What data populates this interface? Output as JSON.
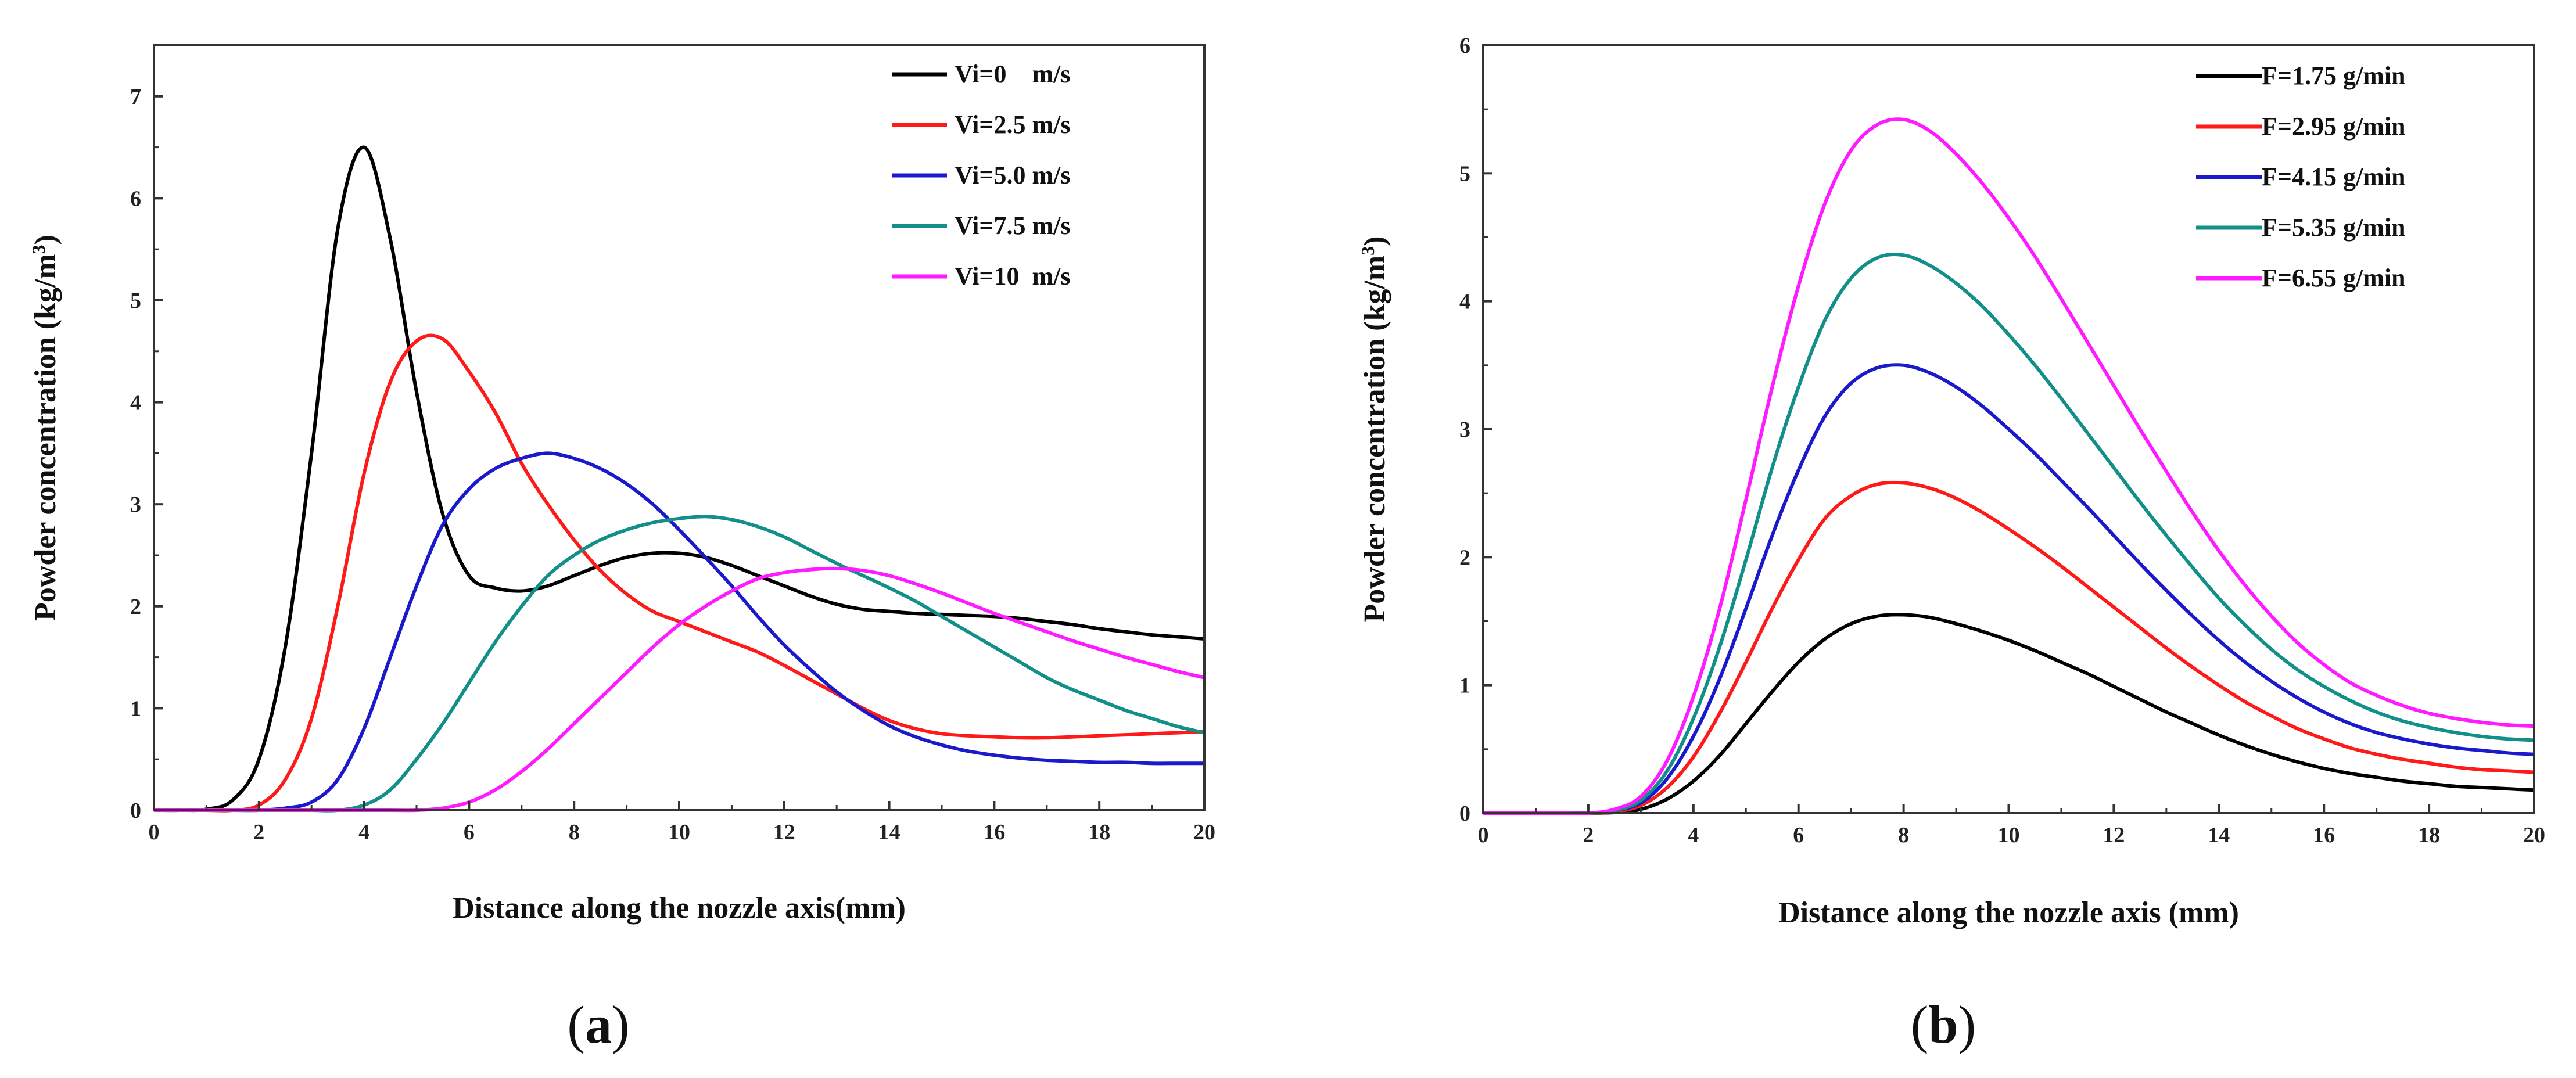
{
  "chart_data": [
    {
      "type": "line",
      "panel_label": "(a)",
      "panel_letter": "a",
      "xlabel": "Distance along the nozzle axis(mm)",
      "ylabel": "Powder concentration (kg/m",
      "ylabel_sup": "3",
      "ylabel_close": ")",
      "xlim": [
        0,
        20
      ],
      "ylim": [
        0,
        7.5
      ],
      "xticks": [
        0,
        2,
        4,
        6,
        8,
        10,
        12,
        14,
        16,
        18,
        20
      ],
      "yticks": [
        0,
        1,
        2,
        3,
        4,
        5,
        6,
        7
      ],
      "xtick_labels": [
        "0",
        "2",
        "4",
        "6",
        "8",
        "10",
        "12",
        "14",
        "16",
        "18",
        "20"
      ],
      "ytick_labels": [
        "0",
        "1",
        "2",
        "3",
        "4",
        "5",
        "6",
        "7"
      ],
      "legend_position": "top-right",
      "x": [
        0,
        0.5,
        1,
        1.5,
        2,
        2.5,
        3,
        3.5,
        4,
        4.5,
        5,
        5.5,
        6,
        6.5,
        7,
        7.5,
        8,
        8.5,
        9,
        9.5,
        10,
        10.5,
        11,
        11.5,
        12,
        12.5,
        13,
        13.5,
        14,
        14.5,
        15,
        15.5,
        16,
        16.5,
        17,
        17.5,
        18,
        18.5,
        19,
        19.5,
        20
      ],
      "series": [
        {
          "name": "Vi=0    m/s",
          "color": "#000000",
          "values": [
            0,
            0,
            0.01,
            0.1,
            0.5,
            1.6,
            3.5,
            5.7,
            6.5,
            5.6,
            4.1,
            2.9,
            2.3,
            2.18,
            2.15,
            2.2,
            2.3,
            2.4,
            2.48,
            2.52,
            2.52,
            2.48,
            2.4,
            2.3,
            2.2,
            2.1,
            2.02,
            1.97,
            1.95,
            1.93,
            1.92,
            1.91,
            1.9,
            1.88,
            1.85,
            1.82,
            1.78,
            1.75,
            1.72,
            1.7,
            1.68
          ]
        },
        {
          "name": "Vi=2.5 m/s",
          "color": "#ff1a1a",
          "values": [
            0,
            0,
            0,
            0,
            0.05,
            0.3,
            0.9,
            2.0,
            3.3,
            4.2,
            4.6,
            4.62,
            4.3,
            3.9,
            3.4,
            3.0,
            2.65,
            2.35,
            2.12,
            1.95,
            1.85,
            1.75,
            1.65,
            1.55,
            1.42,
            1.28,
            1.14,
            1.0,
            0.88,
            0.8,
            0.75,
            0.73,
            0.72,
            0.71,
            0.71,
            0.72,
            0.73,
            0.74,
            0.75,
            0.76,
            0.77
          ]
        },
        {
          "name": "Vi=5.0 m/s",
          "color": "#1a1acc",
          "values": [
            0,
            0,
            0,
            0,
            0,
            0.02,
            0.08,
            0.3,
            0.8,
            1.5,
            2.2,
            2.8,
            3.15,
            3.35,
            3.45,
            3.5,
            3.45,
            3.35,
            3.2,
            3.0,
            2.75,
            2.48,
            2.2,
            1.9,
            1.62,
            1.38,
            1.16,
            0.98,
            0.83,
            0.72,
            0.64,
            0.58,
            0.54,
            0.51,
            0.49,
            0.48,
            0.47,
            0.47,
            0.46,
            0.46,
            0.46
          ]
        },
        {
          "name": "Vi=7.5 m/s",
          "color": "#138f8a",
          "values": [
            0,
            0,
            0,
            0,
            0,
            0,
            0,
            0,
            0.05,
            0.2,
            0.5,
            0.85,
            1.25,
            1.65,
            2.0,
            2.3,
            2.5,
            2.65,
            2.75,
            2.82,
            2.86,
            2.88,
            2.85,
            2.78,
            2.68,
            2.55,
            2.42,
            2.3,
            2.18,
            2.05,
            1.9,
            1.75,
            1.6,
            1.45,
            1.3,
            1.18,
            1.08,
            0.98,
            0.9,
            0.82,
            0.76
          ]
        },
        {
          "name": "Vi=10  m/s",
          "color": "#ff1aff",
          "values": [
            0,
            0,
            0,
            0,
            0,
            0,
            0,
            0,
            0,
            0,
            0,
            0.02,
            0.08,
            0.2,
            0.38,
            0.6,
            0.85,
            1.1,
            1.35,
            1.6,
            1.82,
            2.0,
            2.15,
            2.27,
            2.33,
            2.36,
            2.37,
            2.35,
            2.3,
            2.22,
            2.13,
            2.03,
            1.93,
            1.84,
            1.75,
            1.66,
            1.58,
            1.5,
            1.43,
            1.36,
            1.3
          ]
        }
      ]
    },
    {
      "type": "line",
      "panel_label": "(b)",
      "panel_letter": "b",
      "xlabel": "Distance along the nozzle axis (mm)",
      "ylabel": "Powder concentration (kg/m",
      "ylabel_sup": "3",
      "ylabel_close": ")",
      "xlim": [
        0,
        20
      ],
      "ylim": [
        0,
        6
      ],
      "xticks": [
        0,
        2,
        4,
        6,
        8,
        10,
        12,
        14,
        16,
        18,
        20
      ],
      "yticks": [
        0,
        1,
        2,
        3,
        4,
        5,
        6
      ],
      "xtick_labels": [
        "0",
        "2",
        "4",
        "6",
        "8",
        "10",
        "12",
        "14",
        "16",
        "18",
        "20"
      ],
      "ytick_labels": [
        "0",
        "1",
        "2",
        "3",
        "4",
        "5",
        "6"
      ],
      "legend_position": "top-right",
      "x": [
        0,
        0.5,
        1,
        1.5,
        2,
        2.5,
        3,
        3.5,
        4,
        4.5,
        5,
        5.5,
        6,
        6.5,
        7,
        7.5,
        8,
        8.5,
        9,
        9.5,
        10,
        10.5,
        11,
        11.5,
        12,
        12.5,
        13,
        13.5,
        14,
        14.5,
        15,
        15.5,
        16,
        16.5,
        17,
        17.5,
        18,
        18.5,
        19,
        19.5,
        20
      ],
      "series": [
        {
          "name": "F=1.75 g/min",
          "color": "#000000",
          "values": [
            0,
            0,
            0,
            0,
            0,
            0.005,
            0.03,
            0.11,
            0.25,
            0.45,
            0.7,
            0.95,
            1.18,
            1.36,
            1.48,
            1.54,
            1.55,
            1.53,
            1.48,
            1.42,
            1.35,
            1.27,
            1.18,
            1.09,
            0.99,
            0.89,
            0.79,
            0.7,
            0.61,
            0.53,
            0.46,
            0.4,
            0.35,
            0.31,
            0.28,
            0.25,
            0.23,
            0.21,
            0.2,
            0.19,
            0.18
          ]
        },
        {
          "name": "F=2.95 g/min",
          "color": "#ff1a1a",
          "values": [
            0,
            0,
            0,
            0,
            0,
            0.01,
            0.06,
            0.2,
            0.44,
            0.78,
            1.18,
            1.6,
            1.98,
            2.3,
            2.48,
            2.57,
            2.58,
            2.54,
            2.46,
            2.35,
            2.22,
            2.08,
            1.93,
            1.77,
            1.61,
            1.45,
            1.29,
            1.14,
            1.0,
            0.87,
            0.76,
            0.66,
            0.58,
            0.51,
            0.46,
            0.42,
            0.39,
            0.36,
            0.34,
            0.33,
            0.32
          ]
        },
        {
          "name": "F=4.15 g/min",
          "color": "#1a1acc",
          "values": [
            0,
            0,
            0,
            0,
            0,
            0.02,
            0.08,
            0.27,
            0.6,
            1.05,
            1.6,
            2.17,
            2.68,
            3.1,
            3.36,
            3.48,
            3.5,
            3.44,
            3.33,
            3.18,
            3.0,
            2.81,
            2.6,
            2.39,
            2.17,
            1.95,
            1.74,
            1.54,
            1.35,
            1.18,
            1.03,
            0.9,
            0.79,
            0.7,
            0.63,
            0.58,
            0.54,
            0.51,
            0.49,
            0.47,
            0.46
          ]
        },
        {
          "name": "F=5.35 g/min",
          "color": "#138f8a",
          "values": [
            0,
            0,
            0,
            0,
            0,
            0.02,
            0.1,
            0.33,
            0.74,
            1.3,
            1.98,
            2.7,
            3.33,
            3.85,
            4.18,
            4.34,
            4.36,
            4.28,
            4.14,
            3.96,
            3.74,
            3.5,
            3.24,
            2.97,
            2.7,
            2.43,
            2.17,
            1.92,
            1.68,
            1.47,
            1.28,
            1.12,
            0.99,
            0.88,
            0.79,
            0.72,
            0.67,
            0.63,
            0.6,
            0.58,
            0.57
          ]
        },
        {
          "name": "F=6.55 g/min",
          "color": "#ff1aff",
          "values": [
            0,
            0,
            0,
            0,
            0,
            0.03,
            0.13,
            0.41,
            0.91,
            1.6,
            2.45,
            3.33,
            4.12,
            4.76,
            5.18,
            5.38,
            5.42,
            5.33,
            5.15,
            4.92,
            4.65,
            4.35,
            4.02,
            3.68,
            3.34,
            3.0,
            2.67,
            2.35,
            2.05,
            1.78,
            1.54,
            1.33,
            1.16,
            1.02,
            0.92,
            0.84,
            0.78,
            0.74,
            0.71,
            0.69,
            0.68
          ]
        }
      ]
    }
  ]
}
